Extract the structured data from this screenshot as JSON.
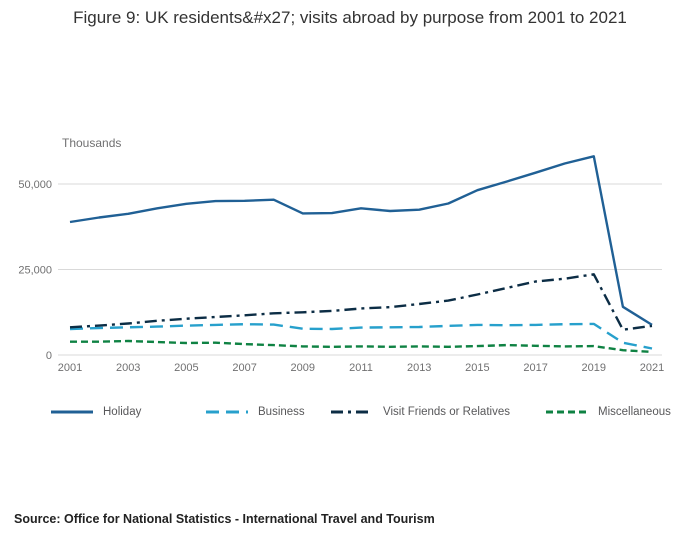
{
  "source_note": "Source: Office for National Statistics - International Travel and Tourism",
  "chart_data": {
    "type": "line",
    "title": "Figure 9: UK residents&#x27; visits abroad by purpose from 2001 to 2021",
    "ylabel": "Thousands",
    "xlabel": "",
    "grid": true,
    "legend_position": "bottom",
    "ylim": [
      0,
      60000
    ],
    "x": [
      2001,
      2002,
      2003,
      2004,
      2005,
      2006,
      2007,
      2008,
      2009,
      2010,
      2011,
      2012,
      2013,
      2014,
      2015,
      2016,
      2017,
      2018,
      2019,
      2020,
      2021
    ],
    "x_tick_labels": [
      "2001",
      "2003",
      "2005",
      "2007",
      "2009",
      "2011",
      "2013",
      "2015",
      "2017",
      "2019",
      "2021"
    ],
    "y_ticks": [
      0,
      25000,
      50000
    ],
    "y_tick_labels": [
      "0",
      "25,000",
      "50,000"
    ],
    "series": [
      {
        "name": "Holiday",
        "color": "#206095",
        "style": "solid",
        "values": [
          38900,
          40200,
          41300,
          42900,
          44200,
          45000,
          45100,
          45400,
          41400,
          41500,
          42900,
          42100,
          42500,
          44300,
          48200,
          50700,
          53300,
          56000,
          58100,
          14100,
          8800
        ]
      },
      {
        "name": "Business",
        "color": "#27a0cc",
        "style": "dashed",
        "values": [
          7600,
          7900,
          8100,
          8300,
          8600,
          8800,
          9000,
          8900,
          7700,
          7600,
          8000,
          8100,
          8200,
          8500,
          8800,
          8700,
          8800,
          9000,
          9100,
          3600,
          1900
        ]
      },
      {
        "name": "Visit Friends or Relatives",
        "color": "#0c2d45",
        "style": "dashdot",
        "values": [
          8100,
          8600,
          9200,
          10000,
          10600,
          11100,
          11600,
          12200,
          12500,
          12900,
          13600,
          14000,
          14900,
          15900,
          17700,
          19600,
          21500,
          22300,
          23600,
          7400,
          8500
        ]
      },
      {
        "name": "Miscellaneous",
        "color": "#0f8243",
        "style": "shortdash",
        "values": [
          3900,
          3900,
          4100,
          3800,
          3500,
          3600,
          3200,
          2900,
          2500,
          2400,
          2500,
          2400,
          2500,
          2400,
          2600,
          2900,
          2700,
          2500,
          2600,
          1400,
          900
        ]
      }
    ]
  }
}
